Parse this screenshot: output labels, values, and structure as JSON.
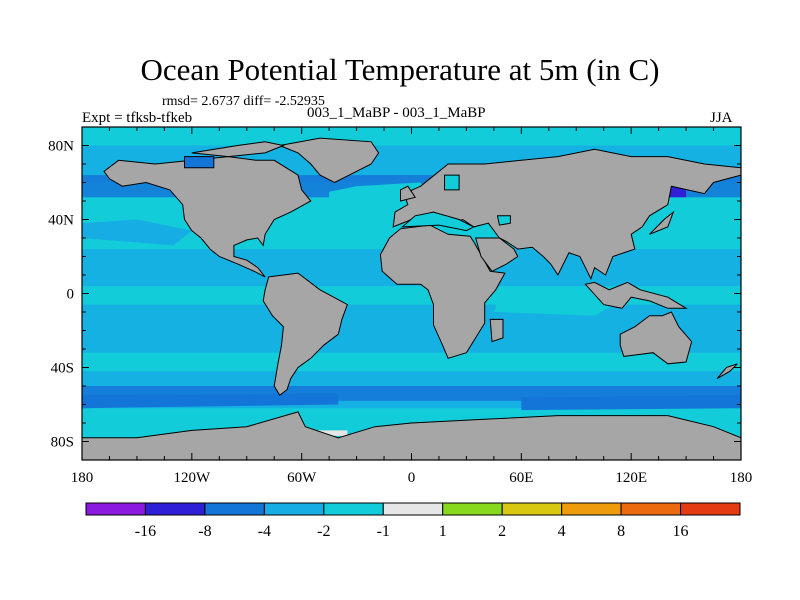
{
  "header": {
    "title": "Ocean Potential Temperature at 5m (in C)",
    "stats": "rmsd= 2.6737 diff= -2.52935",
    "experiment": "Expt = tfksb-tfkeb",
    "cases": "003_1_MaBP - 003_1_MaBP",
    "season": "JJA"
  },
  "chart_data": {
    "type": "heatmap",
    "title": "Ocean Potential Temperature at 5m (in C)",
    "field": "difference map of sea surface potential temperature, land masked in gray",
    "xlabel": "",
    "ylabel": "",
    "xlim": [
      -180,
      180
    ],
    "ylim": [
      -90,
      90
    ],
    "x_ticks": [
      {
        "value": -180,
        "label": "180"
      },
      {
        "value": -120,
        "label": "120W"
      },
      {
        "value": -60,
        "label": "60W"
      },
      {
        "value": 0,
        "label": "0"
      },
      {
        "value": 60,
        "label": "60E"
      },
      {
        "value": 120,
        "label": "120E"
      },
      {
        "value": 180,
        "label": "180"
      }
    ],
    "y_ticks": [
      {
        "value": 80,
        "label": "80N"
      },
      {
        "value": 40,
        "label": "40N"
      },
      {
        "value": 0,
        "label": "0"
      },
      {
        "value": -40,
        "label": "40S"
      },
      {
        "value": -80,
        "label": "80S"
      }
    ],
    "ocean_background_color": "#12ccd9",
    "land_color": "#a6a6a6",
    "contour_bands": [
      {
        "name": "tropical-cool-band-north",
        "value_range": [
          -4,
          -2
        ],
        "color": "#16ace4",
        "lat_range": [
          4,
          24
        ]
      },
      {
        "name": "tropical-cool-band-south",
        "value_range": [
          -4,
          -2
        ],
        "color": "#16ace4",
        "lat_range": [
          -32,
          -6
        ]
      },
      {
        "name": "southern-ocean-band",
        "value_range": [
          -4,
          -2
        ],
        "color": "#16ace4",
        "lat_range": [
          -62,
          -42
        ]
      },
      {
        "name": "southern-ocean-core",
        "value_range": [
          -8,
          -4
        ],
        "color": "#1475d8",
        "lat_range": [
          -58,
          -50
        ]
      },
      {
        "name": "north-atlantic-pacific-band",
        "value_range": [
          -4,
          -2
        ],
        "color": "#16ace4",
        "lat_range": [
          60,
          80
        ]
      },
      {
        "name": "north-pacific-core",
        "value_range": [
          -8,
          -4
        ],
        "color": "#1475d8",
        "lat_range": [
          52,
          64
        ]
      }
    ],
    "colorbar": {
      "colors": [
        "#8a1ae0",
        "#2f1fd6",
        "#1475d8",
        "#16ace4",
        "#12ccd9",
        "#e6e6e6",
        "#86d91c",
        "#d8c80f",
        "#ee9c0b",
        "#ec6a0e",
        "#e43b12"
      ],
      "labels": [
        "-16",
        "-8",
        "-4",
        "-2",
        "-1",
        "1",
        "2",
        "4",
        "8",
        "16"
      ]
    }
  }
}
